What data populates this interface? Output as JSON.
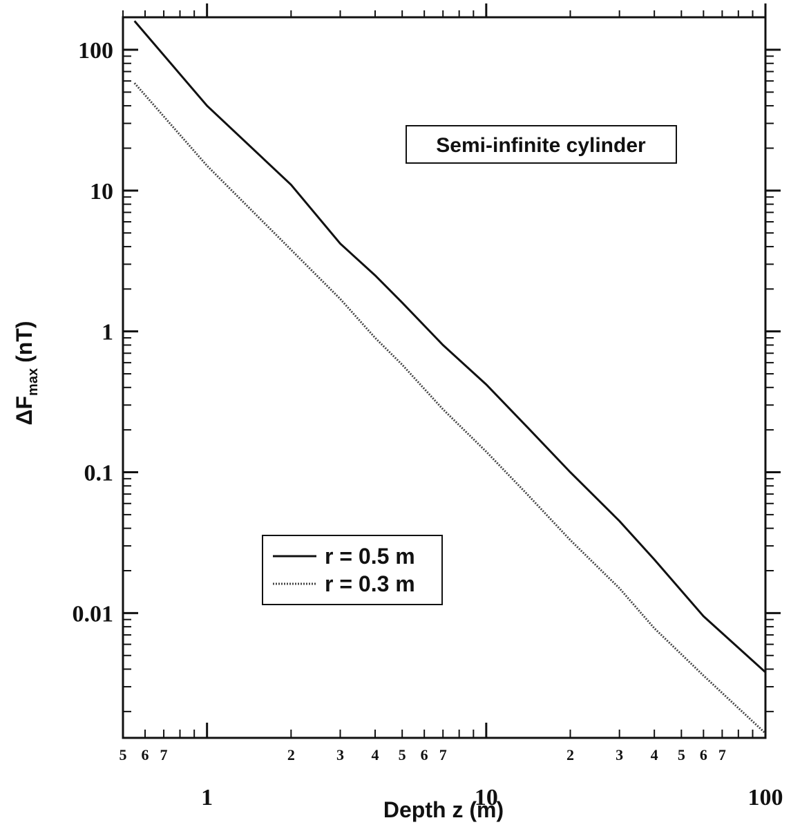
{
  "chart_data": {
    "type": "line",
    "xscale": "log",
    "yscale": "log",
    "xlim": [
      0.55,
      100
    ],
    "ylim": [
      0.0013,
      170
    ],
    "xlabel": "Depth z (m)",
    "ylabel_main": "ΔF",
    "ylabel_sub": "max",
    "ylabel_unit": "(nT)",
    "x_major_ticks": [
      {
        "value": 1,
        "label": "1"
      },
      {
        "value": 10,
        "label": "10"
      },
      {
        "value": 100,
        "label": "100"
      }
    ],
    "x_minor_ticks": [
      {
        "value": 0.5,
        "label": "5"
      },
      {
        "value": 0.6,
        "label": "6"
      },
      {
        "value": 0.7,
        "label": "7"
      },
      {
        "value": 2,
        "label": "2"
      },
      {
        "value": 3,
        "label": "3"
      },
      {
        "value": 4,
        "label": "4"
      },
      {
        "value": 5,
        "label": "5"
      },
      {
        "value": 6,
        "label": "6"
      },
      {
        "value": 7,
        "label": "7"
      },
      {
        "value": 20,
        "label": "2"
      },
      {
        "value": 30,
        "label": "3"
      },
      {
        "value": 40,
        "label": "4"
      },
      {
        "value": 50,
        "label": "5"
      },
      {
        "value": 60,
        "label": "6"
      },
      {
        "value": 70,
        "label": "7"
      }
    ],
    "y_ticks": [
      {
        "value": 100,
        "label": "100"
      },
      {
        "value": 10,
        "label": "10"
      },
      {
        "value": 1,
        "label": "1"
      },
      {
        "value": 0.1,
        "label": "0.1"
      },
      {
        "value": 0.01,
        "label": "0.01"
      }
    ],
    "annotation": "Semi-infinite cylinder",
    "legend_position": "lower-left",
    "series": [
      {
        "name": "r = 0.5 m",
        "style": "solid",
        "color": "#111111",
        "x": [
          0.55,
          1,
          2,
          3,
          4,
          5,
          7,
          10,
          14,
          20,
          30,
          40,
          60,
          100
        ],
        "y": [
          160,
          40,
          11,
          4.2,
          2.5,
          1.6,
          0.8,
          0.42,
          0.21,
          0.1,
          0.045,
          0.024,
          0.0095,
          0.0038
        ]
      },
      {
        "name": "r = 0.3 m",
        "style": "dotted",
        "color": "#444444",
        "x": [
          0.55,
          1,
          2,
          3,
          4,
          5,
          7,
          10,
          14,
          20,
          30,
          40,
          60,
          100
        ],
        "y": [
          58,
          15,
          3.8,
          1.7,
          0.9,
          0.58,
          0.28,
          0.14,
          0.07,
          0.033,
          0.015,
          0.0078,
          0.0036,
          0.0014
        ]
      }
    ]
  }
}
